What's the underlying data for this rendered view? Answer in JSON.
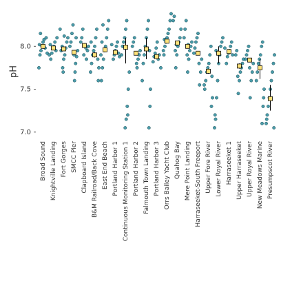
{
  "chart_data": {
    "type": "strip",
    "y_label": "pH",
    "ylim": [
      6.95,
      8.42
    ],
    "yticks": [
      {
        "value": 7,
        "label": "7.0"
      },
      {
        "value": 7.5,
        "label": "7.5"
      },
      {
        "value": 8,
        "label": "8.0"
      }
    ],
    "point_color": "#2a8a9a",
    "mean_color": "#ffe27a",
    "categories": [
      "Broad Sound",
      "Knightville Landing",
      "Fort Gorges",
      "SMCC Pier",
      "Clapboard Island",
      "B&M Railroad/Back Cove",
      "East End Beach",
      "Portland Harbor 1",
      "Continuous Monitoring Station 1",
      "Portland Harbor 2",
      "Falmouth Town Landing",
      "Portland Harbor 3",
      "Orrs Bailey Yacht Club",
      "Quahog Bay",
      "Mere Point Landing",
      "Harraseeket-South Freeport",
      "Upper Fore River",
      "Lower Royal River",
      "Harraseeket 1",
      "Upper Harraseeket",
      "Upper Royal River",
      "New Meadows Marine",
      "Presumpscot River"
    ],
    "means": [
      8.0,
      7.98,
      7.97,
      7.93,
      8.01,
      7.9,
      7.96,
      7.93,
      7.99,
      7.92,
      7.97,
      7.88,
      8.06,
      8.04,
      8.0,
      7.92,
      7.71,
      7.92,
      7.94,
      7.77,
      7.84,
      7.75,
      7.39
    ],
    "lower": [
      7.98,
      7.96,
      7.95,
      7.91,
      7.99,
      7.87,
      7.93,
      7.91,
      7.8,
      7.9,
      7.85,
      7.86,
      8.04,
      8.02,
      7.98,
      7.9,
      7.68,
      7.8,
      7.92,
      7.74,
      7.82,
      7.62,
      7.25
    ],
    "upper": [
      8.02,
      8.0,
      7.99,
      7.95,
      8.03,
      7.93,
      7.99,
      7.95,
      8.1,
      7.94,
      8.1,
      7.9,
      8.08,
      8.06,
      8.02,
      7.94,
      7.74,
      8.0,
      7.96,
      7.8,
      7.86,
      7.85,
      7.55
    ],
    "points": [
      [
        7.75,
        7.9,
        7.95,
        8.0,
        8.05,
        8.08,
        7.98,
        8.1,
        7.92,
        8.02,
        8.15
      ],
      [
        7.85,
        7.92,
        7.98,
        8.0,
        8.05,
        7.95,
        8.1,
        7.9,
        8.02
      ],
      [
        7.75,
        7.85,
        7.9,
        7.98,
        8.05,
        8.1,
        8.2,
        7.95,
        8.0,
        7.7,
        8.12
      ],
      [
        7.6,
        7.8,
        7.88,
        7.95,
        8.0,
        8.05,
        8.15,
        8.25,
        7.9,
        7.7,
        8.1
      ],
      [
        7.85,
        7.95,
        8.0,
        8.05,
        8.1,
        8.2,
        7.9,
        8.02,
        7.98
      ],
      [
        7.6,
        7.7,
        7.8,
        7.9,
        7.95,
        8.0,
        8.1,
        8.2,
        7.85,
        7.75,
        8.05
      ],
      [
        7.6,
        7.75,
        7.85,
        7.95,
        8.0,
        8.1,
        8.2,
        8.3,
        7.9,
        8.05,
        8.25
      ],
      [
        7.85,
        7.9,
        7.95,
        8.0,
        8.05,
        7.92,
        7.88,
        8.02
      ],
      [
        7.05,
        7.15,
        7.3,
        7.5,
        7.7,
        7.9,
        8.0,
        8.05,
        8.1,
        8.2,
        8.3,
        7.2
      ],
      [
        7.75,
        7.85,
        7.9,
        7.95,
        8.0,
        8.05,
        8.1,
        7.92,
        7.8
      ],
      [
        7.05,
        7.3,
        7.6,
        7.8,
        7.9,
        8.0,
        8.1,
        8.2,
        8.3,
        7.95,
        7.5
      ],
      [
        7.75,
        7.82,
        7.88,
        7.92,
        7.98,
        8.05,
        7.85,
        7.9
      ],
      [
        7.9,
        8.0,
        8.05,
        8.1,
        8.15,
        8.2,
        8.3,
        8.38,
        7.95,
        8.08
      ],
      [
        7.75,
        7.9,
        8.0,
        8.05,
        8.1,
        8.2,
        8.3,
        8.35,
        7.95,
        8.02
      ],
      [
        7.7,
        7.85,
        7.95,
        8.0,
        8.05,
        8.1,
        8.2,
        8.3,
        7.9,
        8.02
      ],
      [
        7.55,
        7.7,
        7.85,
        7.92,
        7.98,
        8.05,
        8.1,
        8.15,
        7.8
      ],
      [
        7.3,
        7.4,
        7.5,
        7.6,
        7.7,
        7.75,
        7.8,
        7.9,
        8.0,
        7.65,
        7.55
      ],
      [
        7.05,
        7.15,
        7.4,
        7.6,
        7.8,
        7.9,
        8.0,
        8.05,
        8.1,
        7.2,
        7.95
      ],
      [
        7.8,
        7.88,
        7.92,
        7.95,
        8.0,
        8.05,
        7.9,
        7.98
      ],
      [
        7.45,
        7.6,
        7.7,
        7.75,
        7.8,
        7.85,
        7.9,
        7.95,
        7.65
      ],
      [
        7.4,
        7.6,
        7.7,
        7.8,
        7.85,
        7.9,
        7.95,
        8.0,
        7.75
      ],
      [
        7.1,
        7.3,
        7.5,
        7.6,
        7.7,
        7.8,
        7.85,
        7.9,
        8.0,
        8.05,
        7.4
      ],
      [
        7.05,
        7.1,
        7.2,
        7.3,
        7.4,
        7.5,
        7.6,
        7.7,
        7.8,
        7.9,
        7.15
      ]
    ]
  }
}
